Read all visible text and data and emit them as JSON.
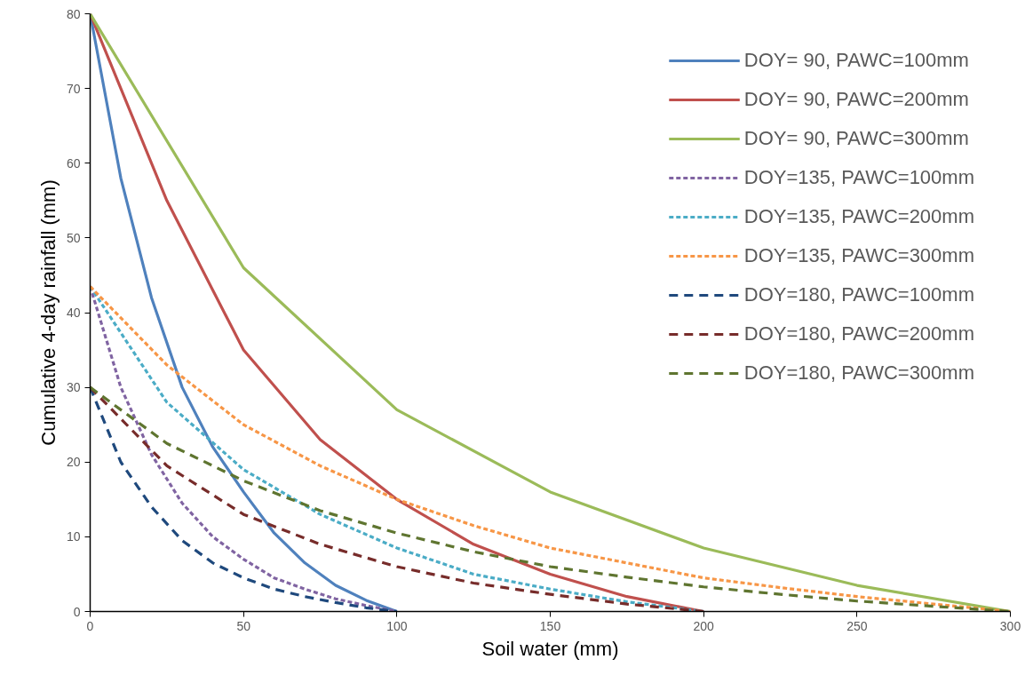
{
  "chart_data": {
    "type": "line",
    "xlabel": "Soil water (mm)",
    "ylabel": "Cumulative 4-day rainfall (mm)",
    "xlim": [
      0,
      300
    ],
    "ylim": [
      0,
      80
    ],
    "xticks": [
      0,
      50,
      100,
      150,
      200,
      250,
      300
    ],
    "yticks": [
      0,
      10,
      20,
      30,
      40,
      50,
      60,
      70,
      80
    ],
    "grid": false,
    "legend": "top right",
    "marker": "none",
    "series": [
      {
        "name": "DOY= 90, PAWC=100mm",
        "color": "#4f81bd",
        "line_style": "solid",
        "x": [
          0,
          10,
          20,
          30,
          40,
          50,
          60,
          70,
          80,
          90,
          100
        ],
        "values": [
          80,
          58,
          42,
          30,
          22,
          16,
          10.5,
          6.5,
          3.5,
          1.5,
          0
        ]
      },
      {
        "name": "DOY= 90, PAWC=200mm",
        "color": "#c0504d",
        "line_style": "solid",
        "x": [
          0,
          25,
          50,
          75,
          100,
          125,
          150,
          175,
          200
        ],
        "values": [
          80,
          55,
          35,
          23,
          15,
          9,
          5,
          2,
          0
        ]
      },
      {
        "name": "DOY= 90, PAWC=300mm",
        "color": "#9bbb59",
        "line_style": "solid",
        "x": [
          0,
          50,
          100,
          150,
          200,
          250,
          300
        ],
        "values": [
          80,
          46,
          27,
          16,
          8.5,
          3.5,
          0
        ]
      },
      {
        "name": "DOY=135, PAWC=100mm",
        "color": "#8064a2",
        "line_style": "dotted",
        "x": [
          0,
          10,
          20,
          30,
          40,
          50,
          60,
          70,
          80,
          90,
          100
        ],
        "values": [
          43.5,
          30,
          21,
          14.5,
          10,
          7,
          4.5,
          3,
          1.7,
          0.8,
          0
        ]
      },
      {
        "name": "DOY=135, PAWC=200mm",
        "color": "#4bacc6",
        "line_style": "dotted",
        "x": [
          0,
          25,
          50,
          75,
          100,
          125,
          150,
          175,
          200
        ],
        "values": [
          43.5,
          28,
          19,
          13,
          8.5,
          5,
          3,
          1.3,
          0
        ]
      },
      {
        "name": "DOY=135, PAWC=300mm",
        "color": "#f79646",
        "line_style": "dotted",
        "x": [
          0,
          25,
          50,
          75,
          100,
          125,
          150,
          175,
          200,
          225,
          250,
          275,
          300
        ],
        "values": [
          43.5,
          33,
          25,
          19.5,
          15,
          11.5,
          8.5,
          6.5,
          4.5,
          3.2,
          2,
          1,
          0
        ]
      },
      {
        "name": "DOY=180, PAWC=100mm",
        "color": "#1f497d",
        "line_style": "dashed",
        "x": [
          0,
          10,
          20,
          30,
          40,
          50,
          60,
          70,
          80,
          90,
          100
        ],
        "values": [
          30,
          20,
          14,
          9.5,
          6.5,
          4.5,
          3,
          2,
          1.2,
          0.5,
          0
        ]
      },
      {
        "name": "DOY=180, PAWC=200mm",
        "color": "#772c2a",
        "line_style": "dashed",
        "x": [
          0,
          25,
          50,
          75,
          100,
          125,
          150,
          175,
          200
        ],
        "values": [
          30,
          19.5,
          13,
          9,
          6,
          3.8,
          2.3,
          1,
          0
        ]
      },
      {
        "name": "DOY=180, PAWC=300mm",
        "color": "#5f7530",
        "line_style": "dashed",
        "x": [
          0,
          25,
          50,
          75,
          100,
          125,
          150,
          175,
          200,
          225,
          250,
          275,
          300
        ],
        "values": [
          30,
          22.5,
          17.5,
          13.5,
          10.5,
          8,
          6,
          4.6,
          3.3,
          2.3,
          1.4,
          0.7,
          0
        ]
      }
    ]
  }
}
